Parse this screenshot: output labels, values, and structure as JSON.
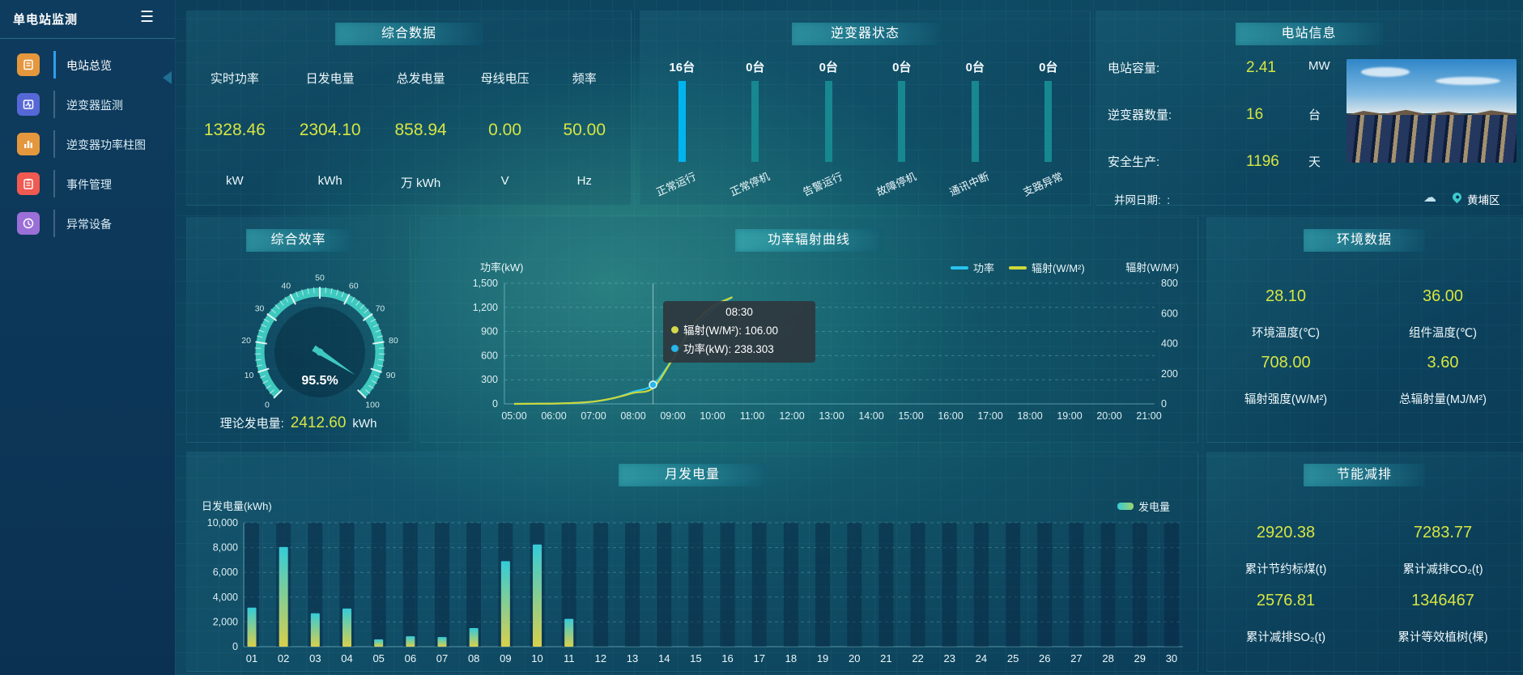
{
  "colors": {
    "accent_yellow": "#d6e542",
    "power_line": "#29c3f0",
    "radiation_line": "#ccd83a",
    "inverter_bar_active": "#00b4f0",
    "inverter_bar_idle": "#17888f",
    "gauge_ring": "#3ec9bf",
    "bar_gradient_top": "#35cbd8",
    "bar_gradient_bottom": "#d8d04c"
  },
  "sidebar": {
    "title": "单电站监测",
    "menu_icon": "☰",
    "items": [
      {
        "label": "电站总览",
        "icon": "station-overview-icon",
        "color": "#e5973d",
        "active": true
      },
      {
        "label": "逆变器监测",
        "icon": "inverter-monitor-icon",
        "color": "#5668d6",
        "active": false
      },
      {
        "label": "逆变器功率柱图",
        "icon": "inverter-power-bars-icon",
        "color": "#e5973d",
        "active": false
      },
      {
        "label": "事件管理",
        "icon": "event-management-icon",
        "color": "#f05a50",
        "active": false
      },
      {
        "label": "异常设备",
        "icon": "abnormal-device-icon",
        "color": "#9a6fd8",
        "active": false
      }
    ]
  },
  "panels": {
    "summary": {
      "title": "综合数据",
      "metrics": [
        {
          "label": "实时功率",
          "value": "1328.46",
          "unit": "kW"
        },
        {
          "label": "日发电量",
          "value": "2304.10",
          "unit": "kWh"
        },
        {
          "label": "总发电量",
          "value": "858.94",
          "unit": "万 kWh"
        },
        {
          "label": "母线电压",
          "value": "0.00",
          "unit": "V"
        },
        {
          "label": "频率",
          "value": "50.00",
          "unit": "Hz"
        }
      ]
    },
    "inverter_status": {
      "title": "逆变器状态",
      "unit_suffix": "台",
      "statuses": [
        {
          "count": "16台",
          "label": "正常运行",
          "highlight": true
        },
        {
          "count": "0台",
          "label": "正常停机",
          "highlight": false
        },
        {
          "count": "0台",
          "label": "告警运行",
          "highlight": false
        },
        {
          "count": "0台",
          "label": "故障停机",
          "highlight": false
        },
        {
          "count": "0台",
          "label": "通讯中断",
          "highlight": false
        },
        {
          "count": "0台",
          "label": "支路异常",
          "highlight": false
        }
      ]
    },
    "station_info": {
      "title": "电站信息",
      "rows": [
        {
          "label": "电站容量:",
          "value": "2.41",
          "unit": "MW"
        },
        {
          "label": "逆变器数量:",
          "value": "16",
          "unit": "台"
        },
        {
          "label": "安全生产:",
          "value": "1196",
          "unit": "天"
        }
      ],
      "grid_date_label": "并网日期:",
      "grid_date_value": ":",
      "location": "黄埔区"
    },
    "efficiency": {
      "title": "综合效率",
      "gauge_label": "95.5%",
      "theory_label": "理论发电量:",
      "theory_value": "2412.60",
      "theory_unit": "kWh"
    },
    "power_curve": {
      "title": "功率辐射曲线",
      "y_label_left": "功率(kW)",
      "y_label_right": "辐射(W/M²)",
      "legend": [
        {
          "name": "功率",
          "color": "#29c3f0"
        },
        {
          "name": "辐射(W/M²)",
          "color": "#ccd83a"
        }
      ],
      "tooltip": {
        "time": "08:30",
        "rows": [
          {
            "dot": "#d4d84a",
            "text": "辐射(W/M²): 106.00"
          },
          {
            "dot": "#27b5ea",
            "text": "功率(kW): 238.303"
          }
        ]
      }
    },
    "environment": {
      "title": "环境数据",
      "metrics": [
        {
          "value": "28.10",
          "label": "环境温度(℃)"
        },
        {
          "value": "36.00",
          "label": "组件温度(℃)"
        },
        {
          "value": "708.00",
          "label": "辐射强度(W/M²)"
        },
        {
          "value": "3.60",
          "label": "总辐射量(MJ/M²)"
        }
      ]
    },
    "monthly": {
      "title": "月发电量",
      "y_label": "日发电量(kWh)",
      "legend": "发电量"
    },
    "savings": {
      "title": "节能减排",
      "metrics": [
        {
          "value": "2920.38",
          "label": "累计节约标煤(t)"
        },
        {
          "value": "7283.77",
          "label": "累计减排CO₂(t)"
        },
        {
          "value": "2576.81",
          "label": "累计减排SO₂(t)"
        },
        {
          "value": "1346467",
          "label": "累计等效植树(棵)"
        }
      ]
    }
  },
  "chart_data": [
    {
      "type": "bar",
      "name": "inverter_status",
      "categories": [
        "正常运行",
        "正常停机",
        "告警运行",
        "故障停机",
        "通讯中断",
        "支路异常"
      ],
      "values": [
        16,
        0,
        0,
        0,
        0,
        0
      ],
      "unit": "台"
    },
    {
      "type": "gauge",
      "name": "efficiency_gauge",
      "value": 95.5,
      "min": 0,
      "max": 100,
      "tick_step": 10
    },
    {
      "type": "line",
      "name": "power_radiation_curve",
      "title": "功率辐射曲线",
      "x_ticks": [
        "05:00",
        "06:00",
        "07:00",
        "08:00",
        "09:00",
        "10:00",
        "11:00",
        "12:00",
        "13:00",
        "14:00",
        "15:00",
        "16:00",
        "17:00",
        "18:00",
        "19:00",
        "20:00",
        "21:00"
      ],
      "x_hours": [
        5,
        5.5,
        6,
        6.5,
        7,
        7.5,
        8,
        8.5,
        9,
        9.5,
        10,
        10.5
      ],
      "series": [
        {
          "name": "功率",
          "axis": "left",
          "color": "#29c3f0",
          "values": [
            0,
            1,
            4,
            10,
            28,
            70,
            150,
            238.303,
            560,
            920,
            1170,
            1328.46
          ]
        },
        {
          "name": "辐射(W/M²)",
          "axis": "right",
          "color": "#ccd83a",
          "values": [
            0,
            1,
            2,
            6,
            15,
            38,
            72,
            106,
            300,
            520,
            645,
            708
          ]
        }
      ],
      "ylim_left": [
        0,
        1500
      ],
      "yticks_left": [
        0,
        300,
        600,
        900,
        1200,
        1500
      ],
      "ylim_right": [
        0,
        800
      ],
      "yticks_right": [
        0,
        200,
        400,
        600,
        800
      ],
      "hover_x": 8.5,
      "grid": "dashed",
      "legend_position": "top-right"
    },
    {
      "type": "bar",
      "name": "monthly_generation",
      "title": "月发电量",
      "categories": [
        "01",
        "02",
        "03",
        "04",
        "05",
        "06",
        "07",
        "08",
        "09",
        "10",
        "11",
        "12",
        "13",
        "14",
        "15",
        "16",
        "17",
        "18",
        "19",
        "20",
        "21",
        "22",
        "23",
        "24",
        "25",
        "26",
        "27",
        "28",
        "29",
        "30"
      ],
      "values": [
        3150,
        8050,
        2700,
        3080,
        590,
        840,
        780,
        1500,
        6900,
        8250,
        2250,
        0,
        0,
        0,
        0,
        0,
        0,
        0,
        0,
        0,
        0,
        0,
        0,
        0,
        0,
        0,
        0,
        0,
        0,
        0
      ],
      "ylabel": "日发电量(kWh)",
      "ylim": [
        0,
        10000
      ],
      "yticks": [
        0,
        2000,
        4000,
        6000,
        8000,
        10000
      ],
      "legend": "发电量",
      "grid": "dashed"
    }
  ]
}
